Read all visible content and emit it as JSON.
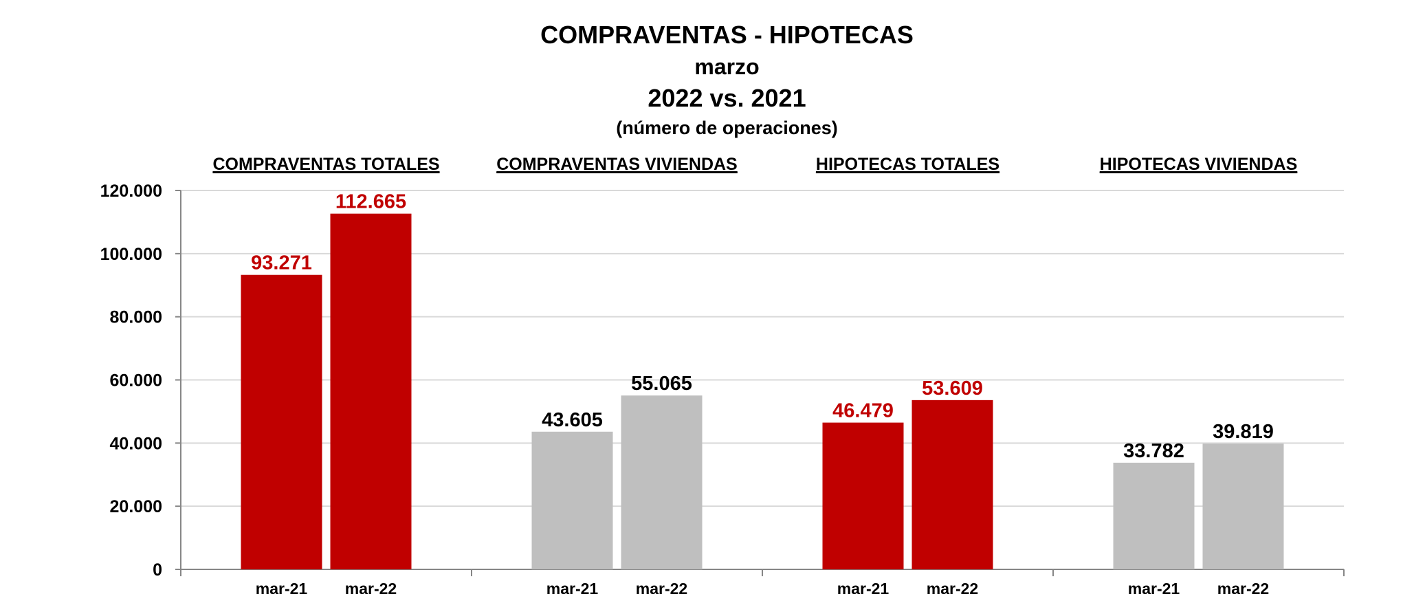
{
  "chart_data": {
    "type": "bar",
    "title": "COMPRAVENTAS - HIPOTECAS",
    "subtitle_lines": [
      "marzo",
      "2022 vs. 2021",
      "(número de operaciones)"
    ],
    "ylim": [
      0,
      120000
    ],
    "y_ticks": [
      {
        "value": 0,
        "label": "0"
      },
      {
        "value": 20000,
        "label": "20.000"
      },
      {
        "value": 40000,
        "label": "40.000"
      },
      {
        "value": 60000,
        "label": "60.000"
      },
      {
        "value": 80000,
        "label": "80.000"
      },
      {
        "value": 100000,
        "label": "100.000"
      },
      {
        "value": 120000,
        "label": "120.000"
      }
    ],
    "grid": true,
    "groups": [
      {
        "name": "COMPRAVENTAS TOTALES",
        "color": "#c00000",
        "label_color": "#c00000",
        "bars": [
          {
            "category": "mar-21",
            "value": 93271,
            "label": "93.271"
          },
          {
            "category": "mar-22",
            "value": 112665,
            "label": "112.665"
          }
        ]
      },
      {
        "name": "COMPRAVENTAS VIVIENDAS",
        "color": "#bfbfbf",
        "label_color": "#000000",
        "bars": [
          {
            "category": "mar-21",
            "value": 43605,
            "label": "43.605"
          },
          {
            "category": "mar-22",
            "value": 55065,
            "label": "55.065"
          }
        ]
      },
      {
        "name": "HIPOTECAS TOTALES",
        "color": "#c00000",
        "label_color": "#c00000",
        "bars": [
          {
            "category": "mar-21",
            "value": 46479,
            "label": "46.479"
          },
          {
            "category": "mar-22",
            "value": 53609,
            "label": "53.609"
          }
        ]
      },
      {
        "name": "HIPOTECAS VIVIENDAS",
        "color": "#bfbfbf",
        "label_color": "#000000",
        "bars": [
          {
            "category": "mar-21",
            "value": 33782,
            "label": "33.782"
          },
          {
            "category": "mar-22",
            "value": 39819,
            "label": "39.819"
          }
        ]
      }
    ]
  }
}
